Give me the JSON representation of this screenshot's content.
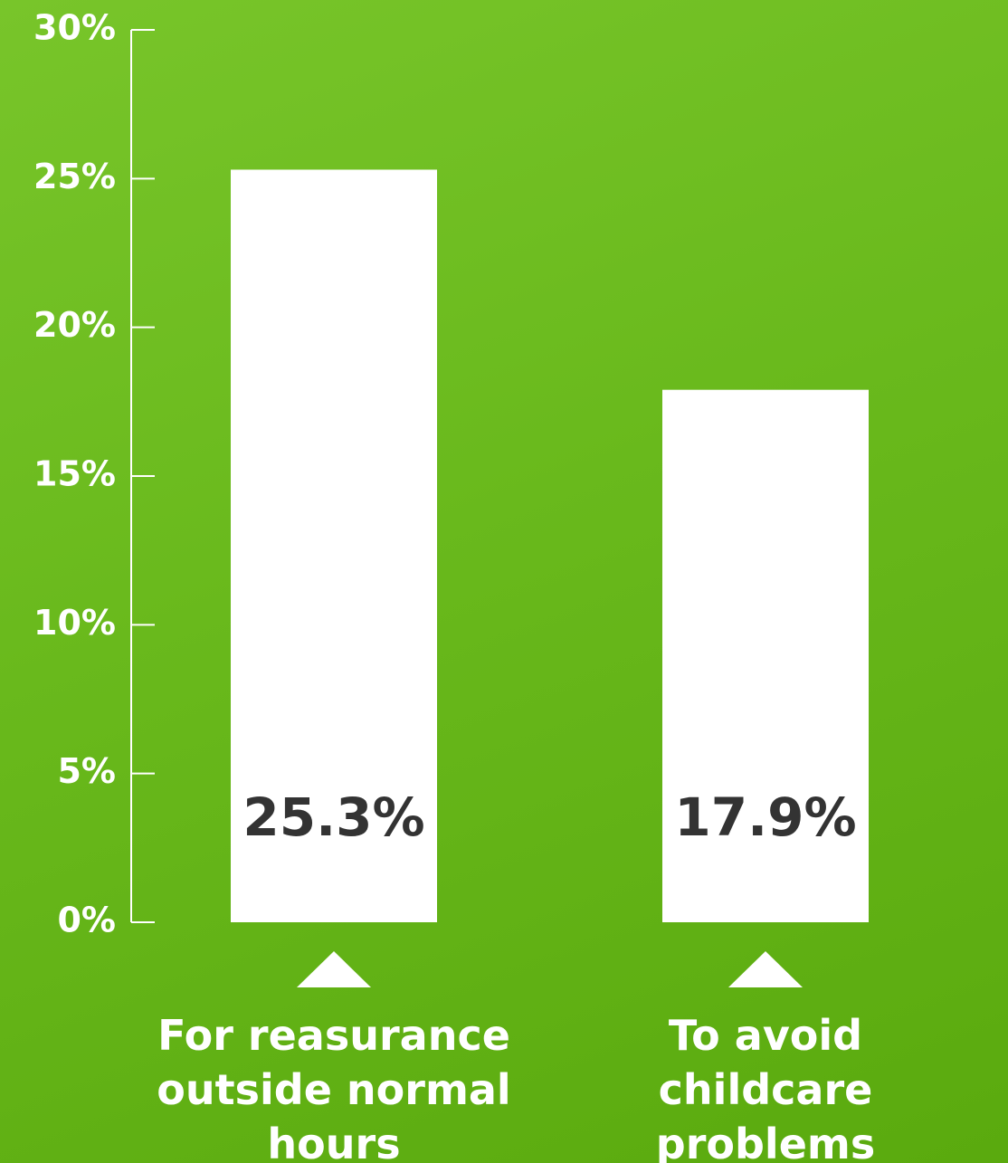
{
  "chart_data": {
    "type": "bar",
    "categories": [
      "For reasurance outside normal hours",
      "To avoid childcare problems"
    ],
    "values": [
      25.3,
      17.9
    ],
    "value_labels": [
      "25.3%",
      "17.9%"
    ],
    "color": "#ffffff",
    "ylim": [
      0,
      30
    ],
    "yticks": [
      {
        "value": 0,
        "label": "0%"
      },
      {
        "value": 5,
        "label": "5%"
      },
      {
        "value": 10,
        "label": "10%"
      },
      {
        "value": 15,
        "label": "15%"
      },
      {
        "value": 20,
        "label": "20%"
      },
      {
        "value": 25,
        "label": "25%"
      },
      {
        "value": 30,
        "label": "30%"
      }
    ]
  }
}
